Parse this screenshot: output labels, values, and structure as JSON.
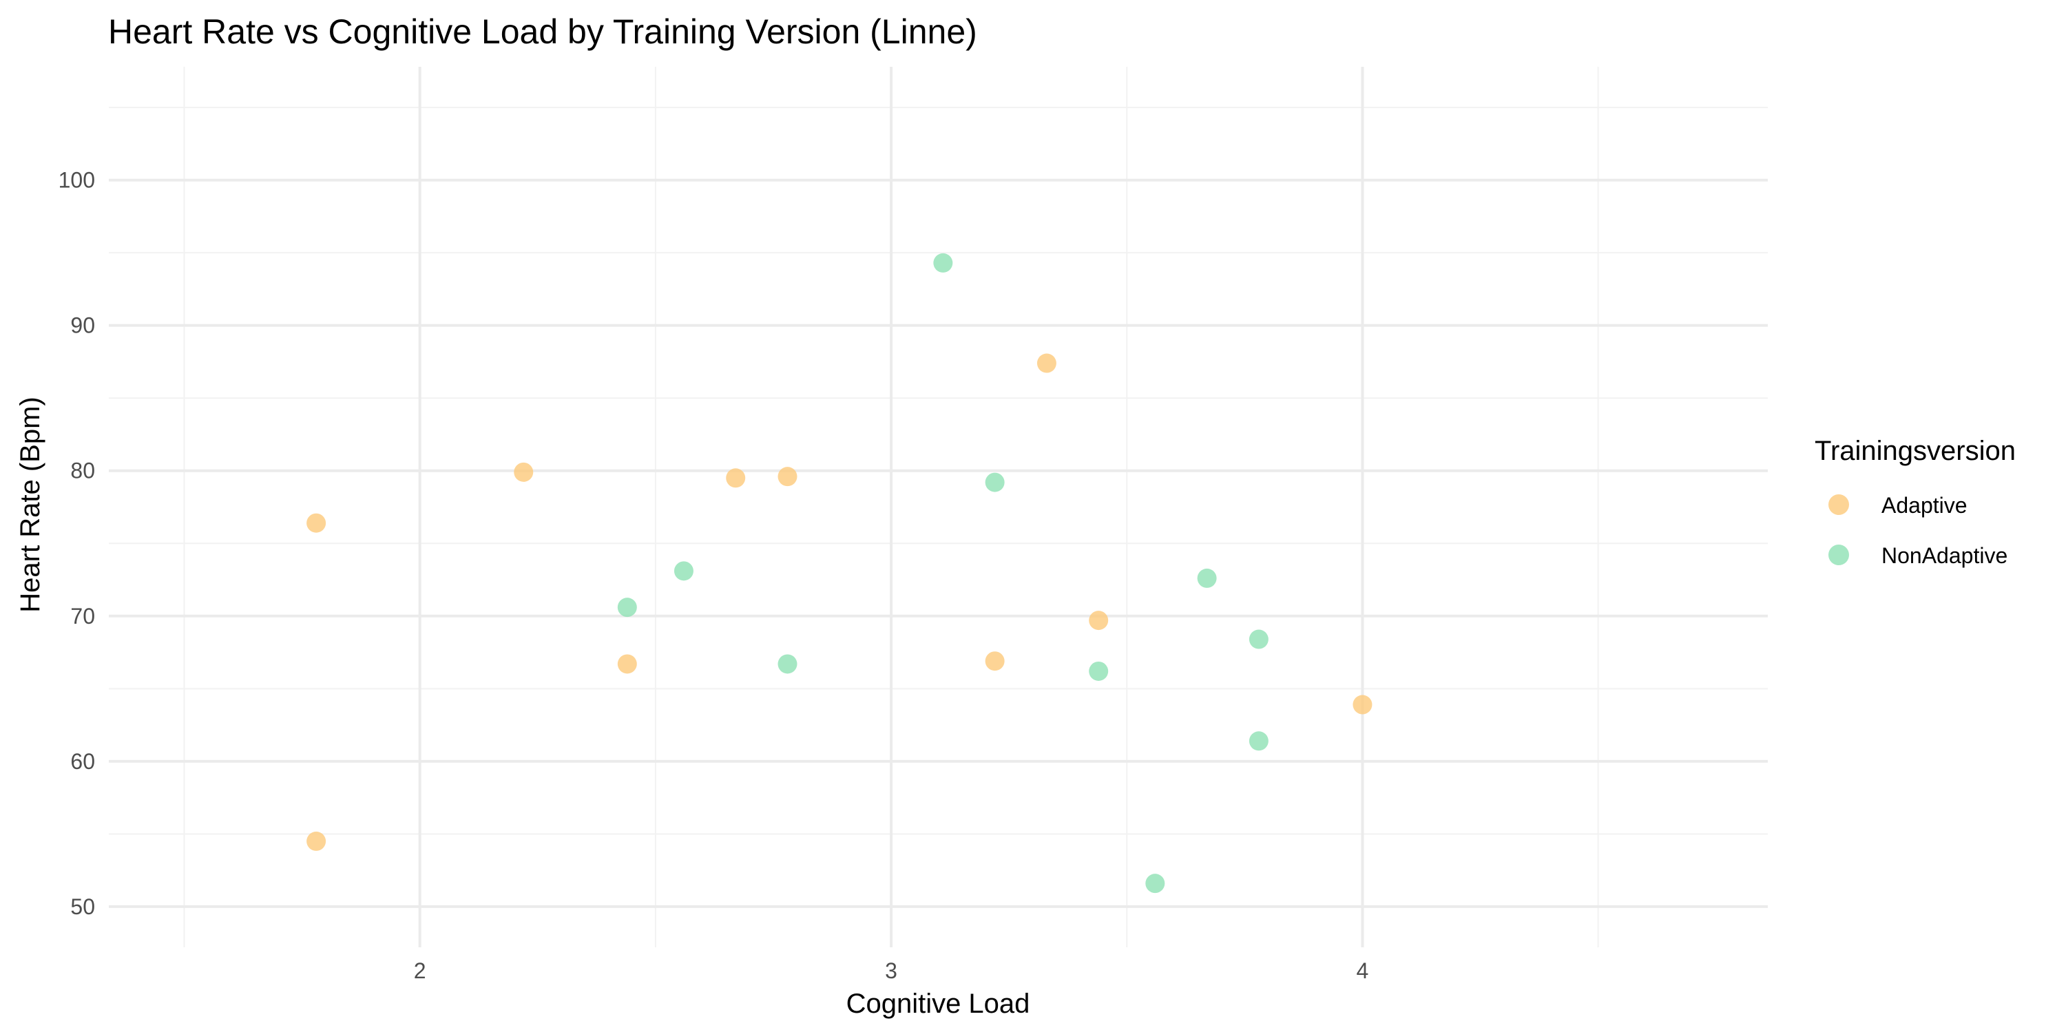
{
  "chart_data": {
    "type": "scatter",
    "title": "Heart Rate vs Cognitive Load by Training Version (Linne)",
    "xlabel": "Cognitive Load",
    "ylabel": "Heart Rate (Bpm)",
    "xlim": [
      1.34,
      4.86
    ],
    "ylim": [
      47.2,
      107.8
    ],
    "x_major_ticks": [
      2,
      3,
      4
    ],
    "x_minor_ticks": [
      1.5,
      2.5,
      3.5,
      4.5
    ],
    "y_major_ticks": [
      50,
      60,
      70,
      80,
      90,
      100
    ],
    "y_minor_ticks": [
      55,
      65,
      75,
      85,
      95,
      105
    ],
    "grid": true,
    "legend": {
      "title": "Trainingsversion",
      "position": "right"
    },
    "series": [
      {
        "name": "Adaptive",
        "color": "#fdc97a",
        "points": [
          {
            "x": 1.78,
            "y": 76.4
          },
          {
            "x": 1.78,
            "y": 54.5
          },
          {
            "x": 2.22,
            "y": 79.9
          },
          {
            "x": 2.44,
            "y": 66.7
          },
          {
            "x": 2.67,
            "y": 79.5
          },
          {
            "x": 2.78,
            "y": 79.6
          },
          {
            "x": 3.22,
            "y": 66.9
          },
          {
            "x": 3.33,
            "y": 87.4
          },
          {
            "x": 3.44,
            "y": 69.7
          },
          {
            "x": 4.0,
            "y": 63.9
          }
        ]
      },
      {
        "name": "NonAdaptive",
        "color": "#8fe1b4",
        "points": [
          {
            "x": 2.44,
            "y": 70.6
          },
          {
            "x": 2.56,
            "y": 73.1
          },
          {
            "x": 2.78,
            "y": 66.7
          },
          {
            "x": 3.11,
            "y": 94.3
          },
          {
            "x": 3.22,
            "y": 79.2
          },
          {
            "x": 3.44,
            "y": 66.2
          },
          {
            "x": 3.56,
            "y": 51.6
          },
          {
            "x": 3.67,
            "y": 72.6
          },
          {
            "x": 3.78,
            "y": 68.4
          },
          {
            "x": 3.78,
            "y": 61.4
          }
        ]
      }
    ]
  }
}
